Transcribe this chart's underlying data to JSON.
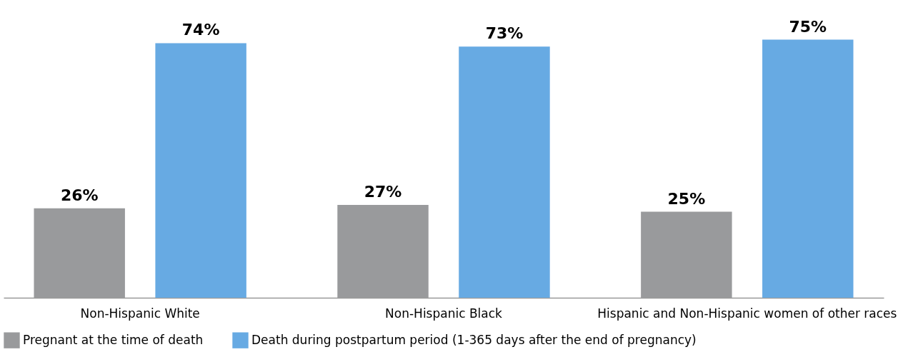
{
  "chart_data": {
    "type": "bar",
    "categories": [
      "Non-Hispanic White",
      "Non-Hispanic Black",
      "Hispanic and Non-Hispanic women of other races"
    ],
    "series": [
      {
        "name": "Pregnant at the time of death",
        "color": "#999a9c",
        "values": [
          26,
          27,
          25
        ],
        "value_labels": [
          "26%",
          "27%",
          "25%"
        ]
      },
      {
        "name": "Death during postpartum period (1-365 days after the end of pregnancy)",
        "color": "#67aae3",
        "values": [
          74,
          73,
          75
        ],
        "value_labels": [
          "74%",
          "73%",
          "75%"
        ]
      }
    ],
    "legend": "bottom",
    "grid": false
  }
}
